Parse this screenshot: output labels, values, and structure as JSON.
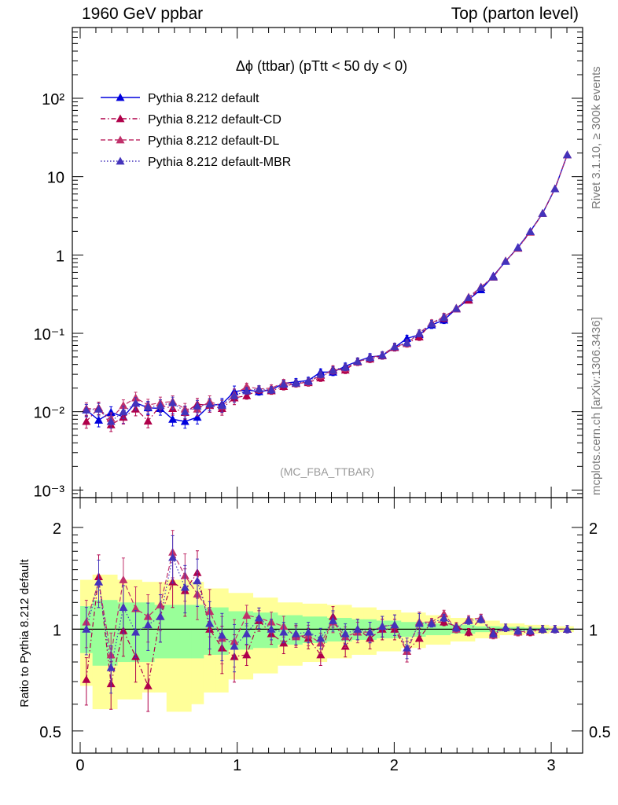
{
  "header": {
    "left": "1960 GeV ppbar",
    "right": "Top (parton level)"
  },
  "side_labels": {
    "rivet": "Rivet 3.1.10, ≥ 300k events",
    "mcplots": "mcplots.cern.ch [arXiv:1306.3436]"
  },
  "chart_data": [
    {
      "type": "line",
      "title": "Δϕ (ttbar) (pTtt < 50 dy < 0)",
      "watermark": "(MC_FBA_TTBAR)",
      "yscale": "log",
      "xlim": [
        -0.05,
        3.2
      ],
      "ylim": [
        0.0008,
        800
      ],
      "y_tick_labels": [
        "10⁻³",
        "10⁻²",
        "10⁻¹",
        "1",
        "10",
        "10²"
      ],
      "x_tick_labels": [
        "0",
        "1",
        "2",
        "3"
      ],
      "legend_position": "top-left",
      "x": [
        0.0393,
        0.1178,
        0.1963,
        0.2749,
        0.3534,
        0.432,
        0.5105,
        0.589,
        0.6676,
        0.7461,
        0.8247,
        0.9032,
        0.9817,
        1.0603,
        1.1388,
        1.2174,
        1.2959,
        1.3744,
        1.453,
        1.5315,
        1.6101,
        1.6886,
        1.7671,
        1.8457,
        1.9242,
        2.0028,
        2.0813,
        2.1598,
        2.2384,
        2.3169,
        2.3955,
        2.474,
        2.5525,
        2.6311,
        2.7096,
        2.7882,
        2.8667,
        2.9452,
        3.0238,
        3.1023
      ],
      "series": [
        {
          "name": "Pythia 8.212 default",
          "color": "#0000dd",
          "line_style": "solid",
          "values": [
            0.0105,
            0.0078,
            0.0098,
            0.0086,
            0.013,
            0.0112,
            0.011,
            0.008,
            0.0075,
            0.0085,
            0.012,
            0.0125,
            0.018,
            0.019,
            0.018,
            0.019,
            0.023,
            0.024,
            0.025,
            0.032,
            0.032,
            0.038,
            0.044,
            0.05,
            0.052,
            0.066,
            0.086,
            0.096,
            0.128,
            0.148,
            0.205,
            0.27,
            0.36,
            0.54,
            0.83,
            1.25,
            2.0,
            3.4,
            7.0,
            19.0
          ]
        },
        {
          "name": "Pythia 8.212 default-CD",
          "color": "#b0004a",
          "line_style": "dashdot",
          "values": [
            0.0075,
            0.0112,
            0.0068,
            0.0085,
            0.0108,
            0.0076,
            0.012,
            0.011,
            0.0098,
            0.0125,
            0.012,
            0.011,
            0.015,
            0.016,
            0.019,
            0.0185,
            0.021,
            0.023,
            0.0235,
            0.027,
            0.035,
            0.034,
            0.044,
            0.047,
            0.052,
            0.066,
            0.074,
            0.09,
            0.135,
            0.156,
            0.21,
            0.265,
            0.39,
            0.53,
            0.84,
            1.22,
            1.96,
            3.4,
            7.0,
            19.0
          ]
        },
        {
          "name": "Pythia 8.212 default-DL",
          "color": "#c0306a",
          "line_style": "dashed",
          "values": [
            0.011,
            0.0108,
            0.0082,
            0.012,
            0.015,
            0.0122,
            0.013,
            0.0135,
            0.0108,
            0.0108,
            0.0135,
            0.0118,
            0.0165,
            0.021,
            0.0195,
            0.02,
            0.0235,
            0.0228,
            0.024,
            0.029,
            0.0335,
            0.036,
            0.043,
            0.049,
            0.053,
            0.068,
            0.074,
            0.101,
            0.135,
            0.164,
            0.205,
            0.29,
            0.39,
            0.52,
            0.84,
            1.23,
            1.98,
            3.4,
            7.0,
            19.0
          ]
        },
        {
          "name": "Pythia 8.212 default-MBR",
          "color": "#4433bb",
          "line_style": "dotted",
          "values": [
            0.0105,
            0.0108,
            0.0075,
            0.01,
            0.0128,
            0.0115,
            0.012,
            0.013,
            0.01,
            0.0118,
            0.0125,
            0.012,
            0.016,
            0.0185,
            0.0195,
            0.019,
            0.0225,
            0.0232,
            0.0245,
            0.03,
            0.034,
            0.037,
            0.044,
            0.049,
            0.053,
            0.068,
            0.076,
            0.1,
            0.133,
            0.16,
            0.208,
            0.285,
            0.385,
            0.525,
            0.835,
            1.24,
            1.99,
            3.4,
            7.0,
            19.0
          ]
        }
      ]
    },
    {
      "type": "line",
      "ylabel": "Ratio to Pythia 8.212 default",
      "yscale": "log",
      "xlim": [
        -0.05,
        3.2
      ],
      "ylim": [
        0.43,
        2.45
      ],
      "y_tick_labels": [
        "0.5",
        "1",
        "2"
      ],
      "x_tick_labels": [
        "0",
        "1",
        "2",
        "3"
      ],
      "reference_line": 1,
      "band_colors": {
        "inner": "#99ff99",
        "outer": "#ffff99"
      },
      "x": [
        0.0393,
        0.1178,
        0.1963,
        0.2749,
        0.3534,
        0.432,
        0.5105,
        0.589,
        0.6676,
        0.7461,
        0.8247,
        0.9032,
        0.9817,
        1.0603,
        1.1388,
        1.2174,
        1.2959,
        1.3744,
        1.453,
        1.5315,
        1.6101,
        1.6886,
        1.7671,
        1.8457,
        1.9242,
        2.0028,
        2.0813,
        2.1598,
        2.2384,
        2.3169,
        2.3955,
        2.474,
        2.5525,
        2.6311,
        2.7096,
        2.7882,
        2.8667,
        2.9452,
        3.0238,
        3.1023
      ],
      "band_inner": [
        [
          0.85,
          1.17
        ],
        [
          0.78,
          1.22
        ],
        [
          0.78,
          1.22
        ],
        [
          0.8,
          1.2
        ],
        [
          0.8,
          1.2
        ],
        [
          0.8,
          1.2
        ],
        [
          0.82,
          1.18
        ],
        [
          0.82,
          1.18
        ],
        [
          0.82,
          1.18
        ],
        [
          0.82,
          1.18
        ],
        [
          0.84,
          1.16
        ],
        [
          0.84,
          1.16
        ],
        [
          0.87,
          1.13
        ],
        [
          0.87,
          1.13
        ],
        [
          0.88,
          1.12
        ],
        [
          0.88,
          1.12
        ],
        [
          0.9,
          1.1
        ],
        [
          0.9,
          1.1
        ],
        [
          0.91,
          1.09
        ],
        [
          0.91,
          1.09
        ],
        [
          0.92,
          1.08
        ],
        [
          0.92,
          1.08
        ],
        [
          0.93,
          1.07
        ],
        [
          0.93,
          1.07
        ],
        [
          0.94,
          1.06
        ],
        [
          0.94,
          1.06
        ],
        [
          0.95,
          1.05
        ],
        [
          0.95,
          1.05
        ],
        [
          0.96,
          1.04
        ],
        [
          0.96,
          1.04
        ],
        [
          0.97,
          1.03
        ],
        [
          0.97,
          1.03
        ],
        [
          0.98,
          1.02
        ],
        [
          0.98,
          1.02
        ],
        [
          0.985,
          1.015
        ],
        [
          0.985,
          1.015
        ],
        [
          0.99,
          1.01
        ],
        [
          0.99,
          1.01
        ],
        [
          0.995,
          1.005
        ],
        [
          0.995,
          1.005
        ]
      ],
      "band_outer": [
        [
          0.68,
          1.4
        ],
        [
          0.58,
          1.45
        ],
        [
          0.58,
          1.45
        ],
        [
          0.62,
          1.4
        ],
        [
          0.62,
          1.4
        ],
        [
          0.65,
          1.38
        ],
        [
          0.65,
          1.38
        ],
        [
          0.57,
          1.4
        ],
        [
          0.57,
          1.4
        ],
        [
          0.6,
          1.38
        ],
        [
          0.65,
          1.32
        ],
        [
          0.65,
          1.32
        ],
        [
          0.71,
          1.28
        ],
        [
          0.71,
          1.28
        ],
        [
          0.74,
          1.24
        ],
        [
          0.74,
          1.24
        ],
        [
          0.78,
          1.2
        ],
        [
          0.78,
          1.2
        ],
        [
          0.8,
          1.19
        ],
        [
          0.8,
          1.19
        ],
        [
          0.82,
          1.18
        ],
        [
          0.82,
          1.18
        ],
        [
          0.84,
          1.16
        ],
        [
          0.84,
          1.16
        ],
        [
          0.86,
          1.14
        ],
        [
          0.86,
          1.14
        ],
        [
          0.88,
          1.12
        ],
        [
          0.88,
          1.12
        ],
        [
          0.9,
          1.1
        ],
        [
          0.9,
          1.1
        ],
        [
          0.92,
          1.08
        ],
        [
          0.92,
          1.08
        ],
        [
          0.94,
          1.06
        ],
        [
          0.94,
          1.06
        ],
        [
          0.96,
          1.04
        ],
        [
          0.96,
          1.04
        ],
        [
          0.97,
          1.03
        ],
        [
          0.97,
          1.03
        ],
        [
          0.98,
          1.02
        ],
        [
          0.98,
          1.02
        ]
      ],
      "series": [
        {
          "name": "Pythia 8.212 default-CD",
          "color": "#b0004a",
          "values": [
            0.71,
            1.43,
            0.69,
            0.99,
            0.83,
            0.68,
            1.09,
            1.38,
            1.3,
            1.47,
            1.0,
            0.88,
            0.83,
            0.84,
            1.06,
            0.97,
            0.91,
            0.96,
            0.94,
            0.84,
            1.09,
            0.89,
            1.0,
            0.94,
            1.0,
            1.0,
            0.86,
            0.94,
            1.05,
            1.05,
            1.02,
            0.98,
            1.08,
            0.98,
            1.01,
            0.98,
            0.98,
            1.0,
            1.0,
            1.0
          ]
        },
        {
          "name": "Pythia 8.212 default-DL",
          "color": "#c0306a",
          "values": [
            1.05,
            1.38,
            0.84,
            1.4,
            1.15,
            1.09,
            1.18,
            1.69,
            1.44,
            1.27,
            1.13,
            0.94,
            0.92,
            1.1,
            1.08,
            1.05,
            1.02,
            0.95,
            0.96,
            0.91,
            1.05,
            0.95,
            0.98,
            0.98,
            1.02,
            1.03,
            0.86,
            1.05,
            1.05,
            1.11,
            1.0,
            1.07,
            1.08,
            0.96,
            1.01,
            0.98,
            0.99,
            1.0,
            1.0,
            1.0
          ]
        },
        {
          "name": "Pythia 8.212 default-MBR",
          "color": "#4433bb",
          "values": [
            1.0,
            1.38,
            0.77,
            1.16,
            0.98,
            1.03,
            1.09,
            1.63,
            1.33,
            1.39,
            1.04,
            0.96,
            0.89,
            0.97,
            1.08,
            1.0,
            0.98,
            0.97,
            0.98,
            0.94,
            1.06,
            0.97,
            1.0,
            0.98,
            1.02,
            1.03,
            0.88,
            1.04,
            1.04,
            1.08,
            1.01,
            1.06,
            1.07,
            0.97,
            1.01,
            0.99,
            0.99,
            1.0,
            1.0,
            1.0
          ]
        }
      ]
    }
  ]
}
